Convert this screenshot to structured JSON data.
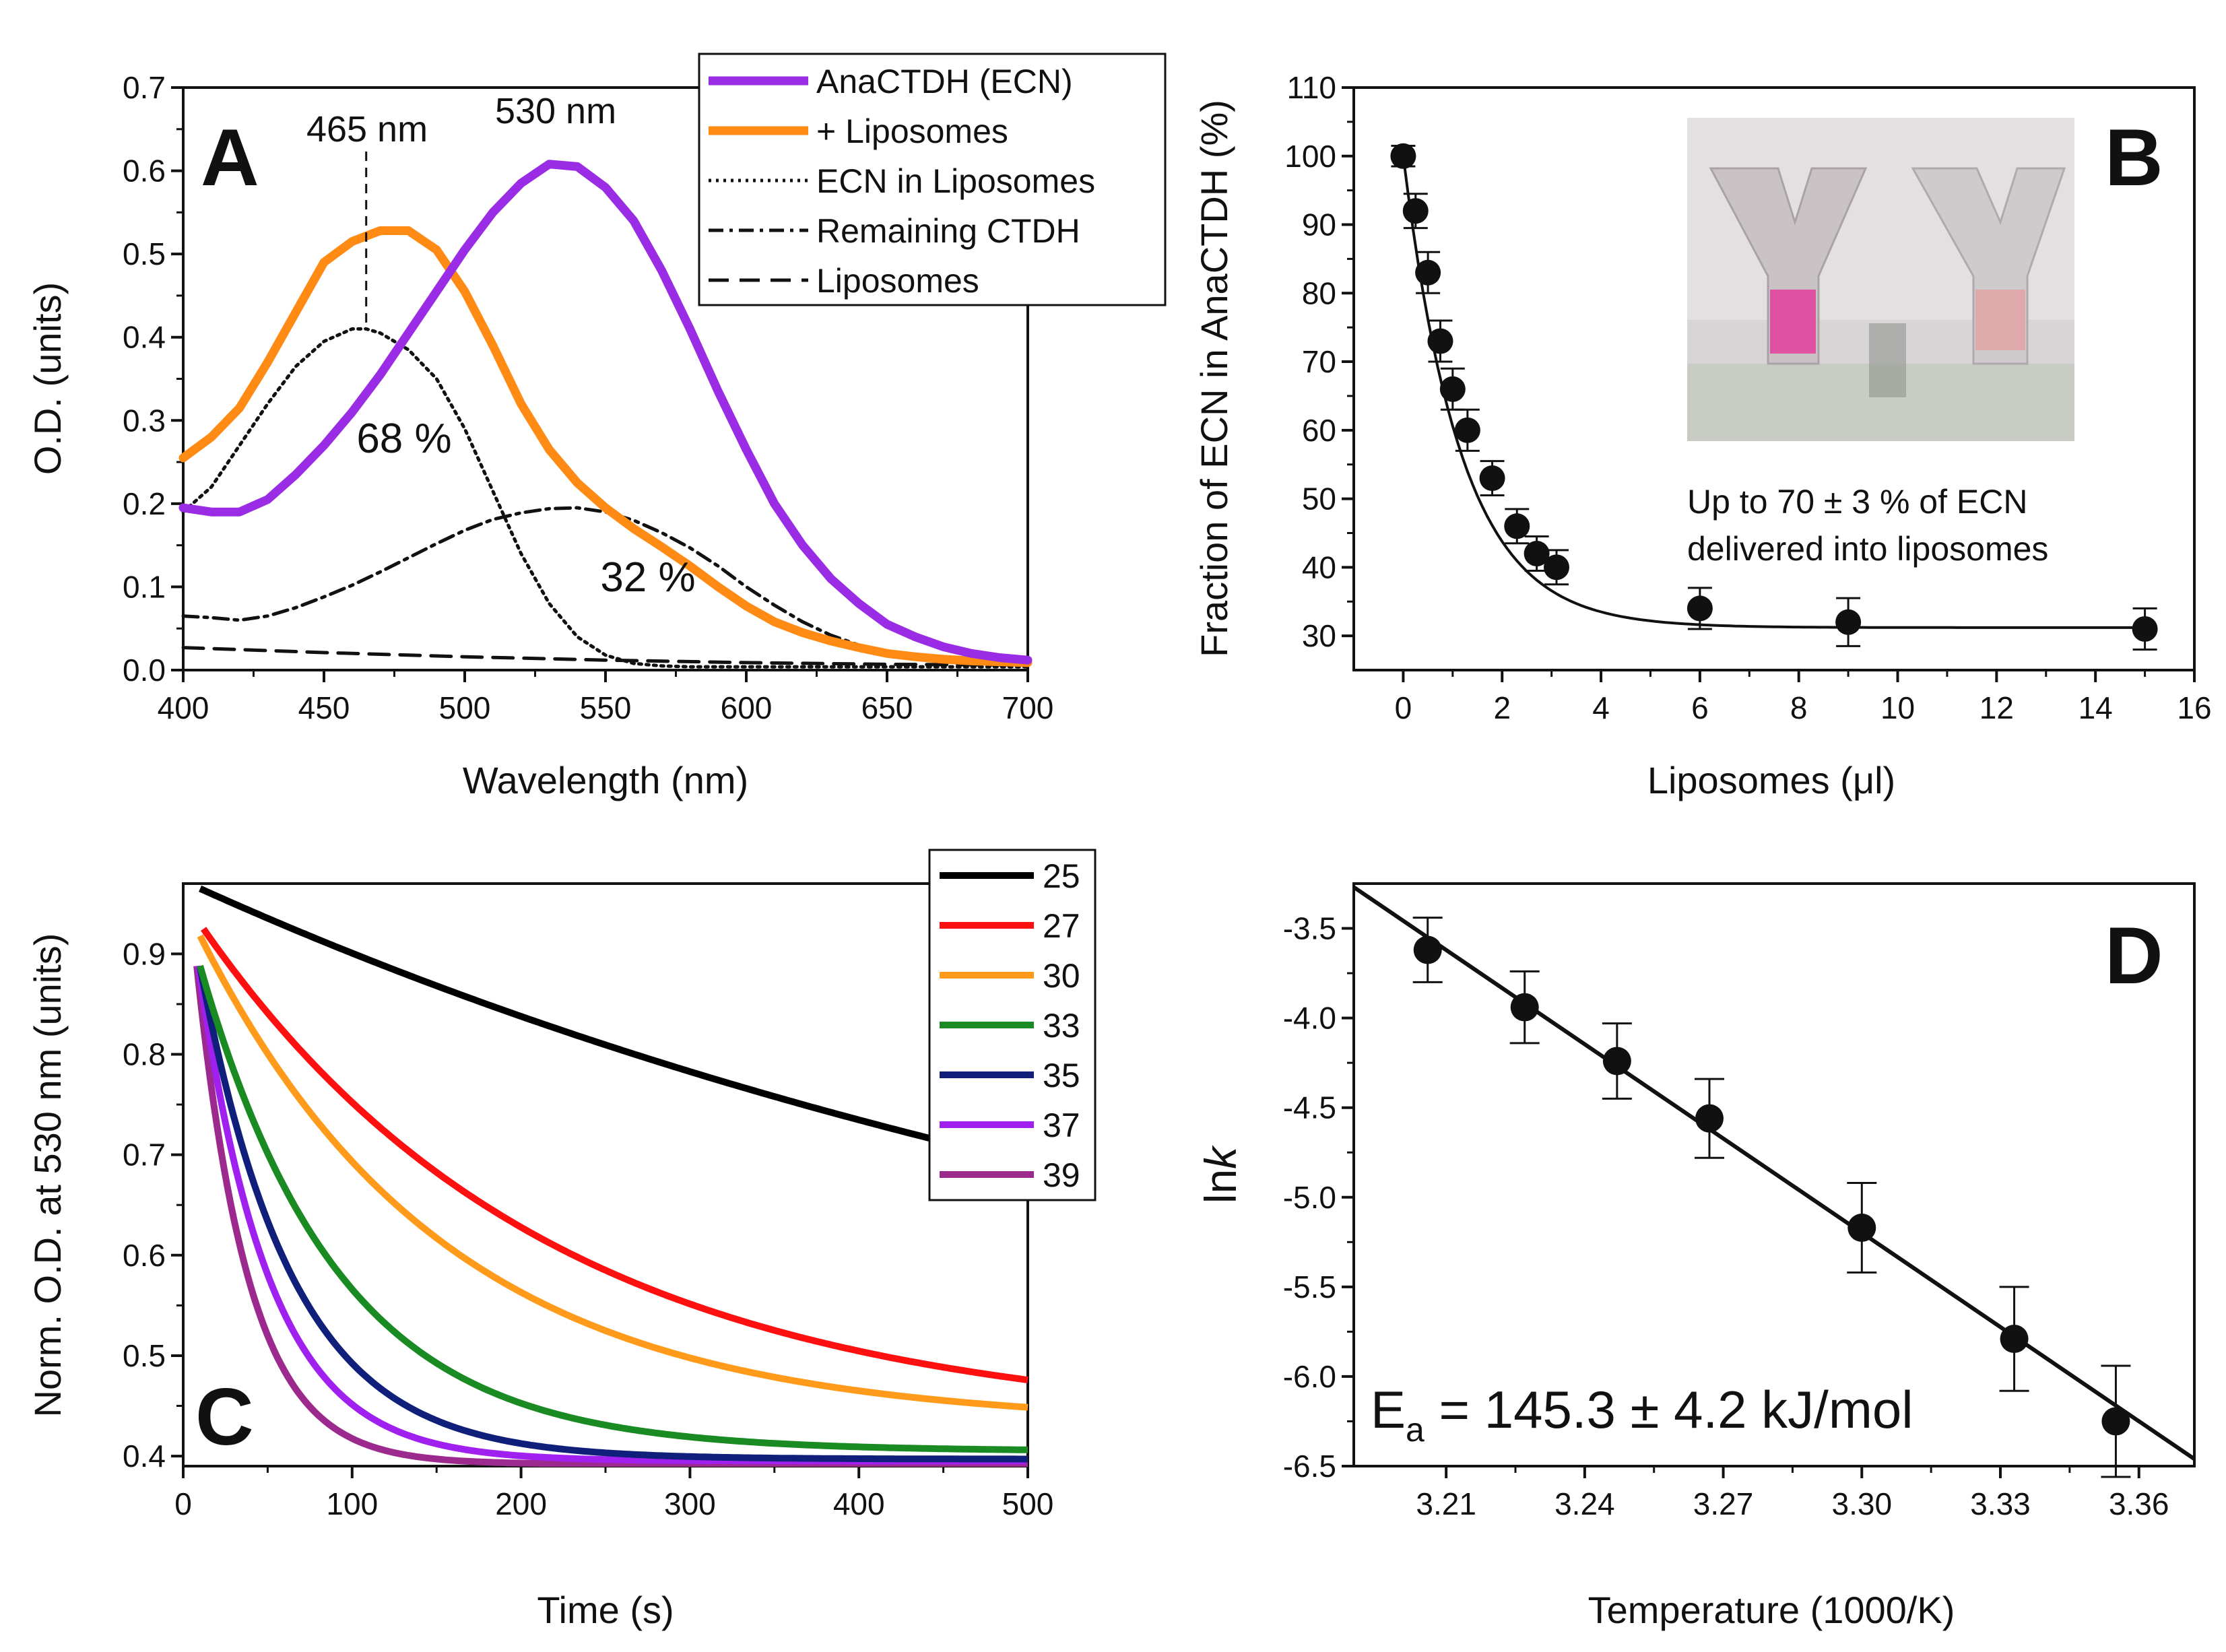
{
  "chart_data": [
    {
      "panel": "A",
      "type": "line",
      "xlabel": "Wavelength (nm)",
      "ylabel": "O.D. (units)",
      "xlim": [
        400,
        700
      ],
      "ylim": [
        0,
        0.7
      ],
      "xticks": [
        400,
        450,
        500,
        550,
        600,
        650,
        700
      ],
      "xtick_labels": [
        "400",
        "450",
        "500",
        "550",
        "600",
        "650",
        "700"
      ],
      "yticks": [
        0,
        0.1,
        0.2,
        0.3,
        0.4,
        0.5,
        0.6,
        0.7
      ],
      "ytick_labels": [
        "0.0",
        "0.1",
        "0.2",
        "0.3",
        "0.4",
        "0.5",
        "0.6",
        "0.7"
      ],
      "legend_position": "top-right",
      "series": [
        {
          "name": "AnaCTDH (ECN)",
          "style": "solid-thick",
          "color": "#9b2ce6",
          "x": [
            400,
            410,
            420,
            430,
            440,
            450,
            460,
            470,
            480,
            490,
            500,
            510,
            520,
            530,
            540,
            550,
            560,
            570,
            580,
            590,
            600,
            610,
            620,
            630,
            640,
            650,
            660,
            670,
            680,
            690,
            700
          ],
          "y": [
            0.195,
            0.19,
            0.19,
            0.205,
            0.235,
            0.27,
            0.31,
            0.355,
            0.405,
            0.455,
            0.505,
            0.55,
            0.585,
            0.608,
            0.605,
            0.58,
            0.54,
            0.48,
            0.41,
            0.335,
            0.265,
            0.2,
            0.15,
            0.11,
            0.08,
            0.055,
            0.04,
            0.028,
            0.02,
            0.015,
            0.012
          ]
        },
        {
          "name": "+ Liposomes",
          "style": "solid-thick",
          "color": "#ff8a14",
          "x": [
            400,
            410,
            420,
            430,
            440,
            450,
            460,
            470,
            480,
            490,
            500,
            510,
            520,
            530,
            540,
            550,
            560,
            570,
            580,
            590,
            600,
            610,
            620,
            630,
            640,
            650,
            660,
            670,
            680,
            690,
            700
          ],
          "y": [
            0.255,
            0.28,
            0.315,
            0.37,
            0.43,
            0.49,
            0.515,
            0.528,
            0.528,
            0.505,
            0.455,
            0.39,
            0.32,
            0.265,
            0.225,
            0.195,
            0.17,
            0.148,
            0.125,
            0.1,
            0.077,
            0.058,
            0.045,
            0.035,
            0.027,
            0.02,
            0.016,
            0.013,
            0.011,
            0.01,
            0.009
          ]
        },
        {
          "name": "ECN in Liposomes",
          "style": "dotted",
          "color": "#111111",
          "x": [
            400,
            410,
            420,
            430,
            440,
            450,
            460,
            465,
            470,
            480,
            490,
            500,
            510,
            520,
            530,
            540,
            550,
            560,
            570,
            580,
            600,
            620,
            650,
            700
          ],
          "y": [
            0.19,
            0.22,
            0.27,
            0.32,
            0.365,
            0.395,
            0.41,
            0.41,
            0.405,
            0.385,
            0.35,
            0.29,
            0.215,
            0.14,
            0.08,
            0.04,
            0.018,
            0.008,
            0.005,
            0.004,
            0.004,
            0.004,
            0.004,
            0.004
          ]
        },
        {
          "name": "Remaining CTDH",
          "style": "dashdot",
          "color": "#111111",
          "x": [
            400,
            410,
            420,
            430,
            440,
            450,
            460,
            470,
            480,
            490,
            500,
            510,
            520,
            530,
            540,
            550,
            560,
            570,
            580,
            590,
            600,
            610,
            620,
            630,
            640,
            650,
            660,
            670,
            680,
            690,
            700
          ],
          "y": [
            0.065,
            0.063,
            0.06,
            0.065,
            0.075,
            0.088,
            0.102,
            0.118,
            0.135,
            0.152,
            0.168,
            0.181,
            0.189,
            0.194,
            0.195,
            0.19,
            0.18,
            0.165,
            0.147,
            0.125,
            0.1,
            0.078,
            0.058,
            0.042,
            0.03,
            0.021,
            0.015,
            0.011,
            0.009,
            0.008,
            0.007
          ]
        },
        {
          "name": "Liposomes",
          "style": "dashed",
          "color": "#111111",
          "x": [
            400,
            450,
            500,
            550,
            600,
            650,
            700
          ],
          "y": [
            0.027,
            0.021,
            0.016,
            0.012,
            0.009,
            0.007,
            0.006
          ]
        }
      ],
      "annotations": {
        "peak1": "465 nm",
        "peak2": "530 nm",
        "pct1": "68 %",
        "pct2": "32 %"
      }
    },
    {
      "panel": "B",
      "type": "scatter",
      "xlabel": "Liposomes (μl)",
      "ylabel": "Fraction of ECN in AnaCTDH (%)",
      "xlim": [
        -1,
        16
      ],
      "ylim": [
        25,
        110
      ],
      "xticks": [
        0,
        2,
        4,
        6,
        8,
        10,
        12,
        14,
        16
      ],
      "xtick_labels": [
        "0",
        "2",
        "4",
        "6",
        "8",
        "10",
        "12",
        "14",
        "16"
      ],
      "yticks": [
        30,
        40,
        50,
        60,
        70,
        80,
        90,
        100,
        110
      ],
      "ytick_labels": [
        "30",
        "40",
        "50",
        "60",
        "70",
        "80",
        "90",
        "100",
        "110"
      ],
      "x": [
        0,
        0.25,
        0.5,
        0.75,
        1.0,
        1.3,
        1.8,
        2.3,
        2.7,
        3.1,
        6,
        9,
        15
      ],
      "y": [
        100,
        92,
        83,
        73,
        66,
        60,
        53,
        46,
        42,
        40,
        34,
        32,
        31
      ],
      "err": [
        1.5,
        2.5,
        3,
        3,
        3,
        3,
        2.5,
        2.5,
        2.5,
        2.5,
        3,
        3.5,
        3
      ],
      "fit": {
        "type": "exponential decay",
        "plateau": 31.2,
        "span": 68.8,
        "k": 0.85
      },
      "inset_text_1": "Up to 70 ± 3 % of ECN",
      "inset_text_2": "delivered into liposomes"
    },
    {
      "panel": "C",
      "type": "line",
      "xlabel": "Time (s)",
      "ylabel": "Norm. O.D. at 530 nm (units)",
      "xlim": [
        0,
        500
      ],
      "ylim": [
        0.39,
        0.97
      ],
      "xticks": [
        0,
        100,
        200,
        300,
        400,
        500
      ],
      "xtick_labels": [
        "0",
        "100",
        "200",
        "300",
        "400",
        "500"
      ],
      "yticks": [
        0.4,
        0.5,
        0.6,
        0.7,
        0.8,
        0.9
      ],
      "ytick_labels": [
        "0.4",
        "0.5",
        "0.6",
        "0.7",
        "0.8",
        "0.9"
      ],
      "legend_position": "top-right",
      "series": [
        {
          "name": "25",
          "color": "#000000",
          "t0": 10,
          "y0": 0.965,
          "plateau": 0.4,
          "tau": 745
        },
        {
          "name": "27",
          "color": "#ff1010",
          "t0": 12,
          "y0": 0.925,
          "plateau": 0.43,
          "tau": 205
        },
        {
          "name": "30",
          "color": "#ff9a1a",
          "t0": 10,
          "y0": 0.918,
          "plateau": 0.432,
          "tau": 145
        },
        {
          "name": "33",
          "color": "#1a8a22",
          "t0": 10,
          "y0": 0.888,
          "plateau": 0.405,
          "tau": 82
        },
        {
          "name": "35",
          "color": "#10207a",
          "t0": 10,
          "y0": 0.887,
          "plateau": 0.397,
          "tau": 55
        },
        {
          "name": "37",
          "color": "#a020f0",
          "t0": 9,
          "y0": 0.888,
          "plateau": 0.395,
          "tau": 42
        },
        {
          "name": "39",
          "color": "#9c2a8e",
          "t0": 8,
          "y0": 0.888,
          "plateau": 0.392,
          "tau": 31
        }
      ]
    },
    {
      "panel": "D",
      "type": "scatter",
      "xlabel": "Temperature (1000/K)",
      "ylabel": "lnk",
      "xlim": [
        3.19,
        3.372
      ],
      "ylim": [
        -6.5,
        -3.25
      ],
      "xticks": [
        3.21,
        3.24,
        3.27,
        3.3,
        3.33,
        3.36
      ],
      "xtick_labels": [
        "3.21",
        "3.24",
        "3.27",
        "3.30",
        "3.33",
        "3.36"
      ],
      "yticks": [
        -3.5,
        -4.0,
        -4.5,
        -5.0,
        -5.5,
        -6.0,
        -6.5
      ],
      "ytick_labels": [
        "-3.5",
        "-4.0",
        "-4.5",
        "-5.0",
        "-5.5",
        "-6.0",
        "-6.5"
      ],
      "x": [
        3.206,
        3.227,
        3.247,
        3.267,
        3.3,
        3.333,
        3.355
      ],
      "y": [
        -3.62,
        -3.94,
        -4.24,
        -4.56,
        -5.17,
        -5.79,
        -6.25
      ],
      "err": [
        0.18,
        0.2,
        0.21,
        0.22,
        0.25,
        0.29,
        0.31
      ],
      "fit": {
        "x": [
          3.19,
          3.372
        ],
        "y": [
          -3.27,
          -6.46
        ]
      },
      "annotation": {
        "prefix": "E",
        "subscript": "a",
        "text": " = 145.3 ± 4.2 kJ/mol"
      }
    }
  ],
  "panel_labels": {
    "A": "A",
    "B": "B",
    "C": "C",
    "D": "D"
  }
}
